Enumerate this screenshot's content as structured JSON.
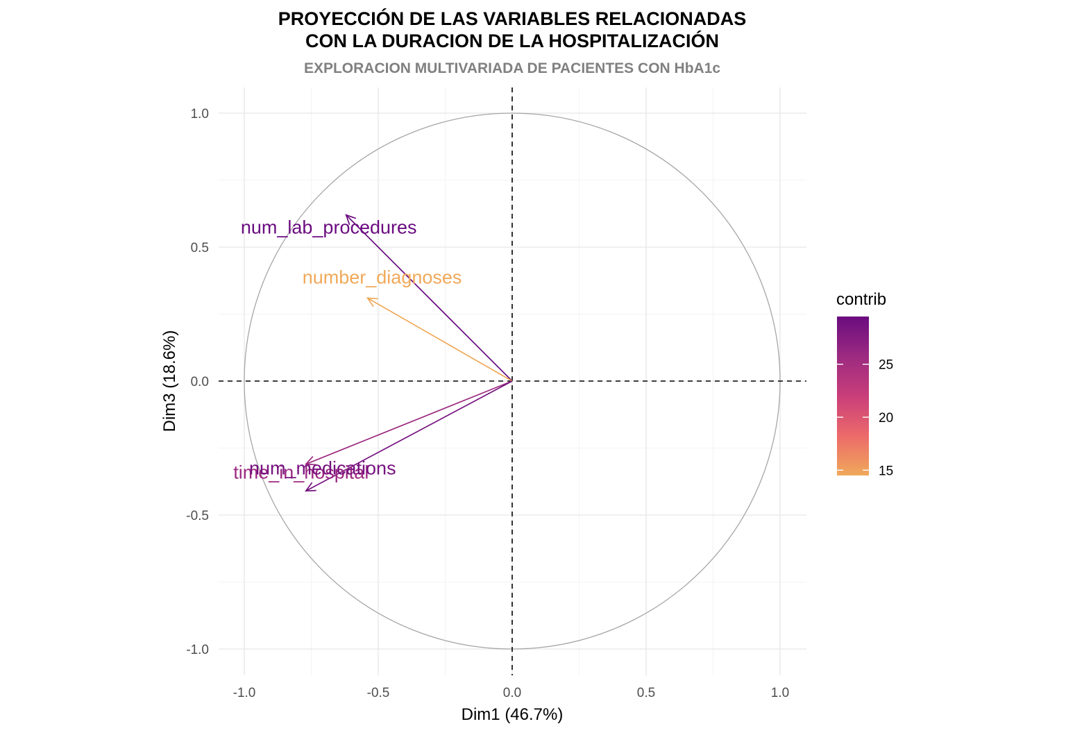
{
  "chart_data": {
    "type": "scatter",
    "subtype": "pca-variable-correlation-circle",
    "title_line1": "PROYECCIÓN DE LAS VARIABLES RELACIONADAS",
    "title_line2": "CON LA DURACION DE LA HOSPITALIZACIÓN",
    "subtitle": "EXPLORACION MULTIVARIADA DE PACIENTES CON HbA1c",
    "xlabel": "Dim1 (46.7%)",
    "ylabel": "Dim3 (18.6%)",
    "xlim": [
      -1.1,
      1.1
    ],
    "ylim": [
      -1.1,
      1.1
    ],
    "xticks": [
      -1.0,
      -0.5,
      0.0,
      0.5,
      1.0
    ],
    "yticks": [
      -1.0,
      -0.5,
      0.0,
      0.5,
      1.0
    ],
    "xtick_labels": [
      "-1.0",
      "-0.5",
      "0.0",
      "0.5",
      "1.0"
    ],
    "ytick_labels": [
      "-1.0",
      "-0.5",
      "0.0",
      "0.5",
      "1.0"
    ],
    "grid": true,
    "unit_circle": true,
    "variables": [
      {
        "name": "num_lab_procedures",
        "x": -0.62,
        "y": 0.62,
        "contrib": 29.5,
        "color": "#6a0c80"
      },
      {
        "name": "number_diagnoses",
        "x": -0.54,
        "y": 0.31,
        "contrib": 14.5,
        "color": "#f0a95a"
      },
      {
        "name": "time_in_hospital",
        "x": -0.77,
        "y": -0.31,
        "contrib": 26.8,
        "color": "#9c2a80"
      },
      {
        "name": "num_medications",
        "x": -0.77,
        "y": -0.41,
        "contrib": 29.2,
        "color": "#76117f"
      }
    ],
    "legend": {
      "title": "contrib",
      "position": "right",
      "range": [
        14.5,
        29.5
      ],
      "ticks": [
        15,
        20,
        25
      ],
      "tick_labels": [
        "15",
        "20",
        "25"
      ],
      "gradient": [
        "#f0a95a",
        "#ec6a6a",
        "#c93e7a",
        "#9c2a80",
        "#6a0c80"
      ]
    }
  }
}
